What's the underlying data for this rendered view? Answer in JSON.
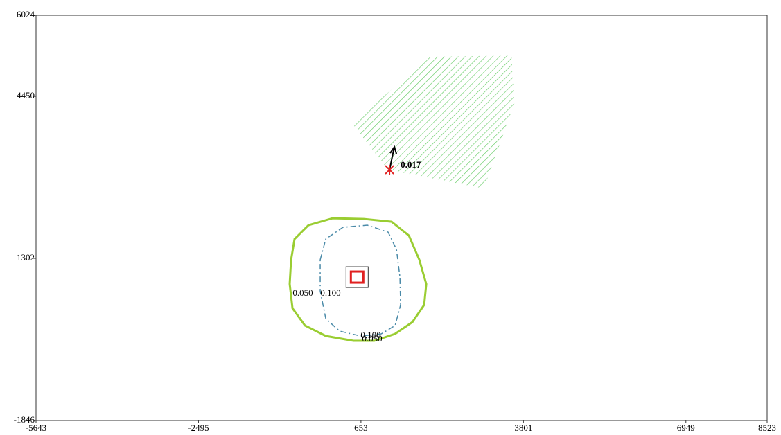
{
  "chart_data": {
    "type": "contour",
    "xlim": [
      -5643,
      8523
    ],
    "ylim": [
      -1846,
      6024
    ],
    "xticks": [
      -5643,
      -2495,
      653,
      3801,
      6949,
      8523
    ],
    "yticks": [
      -1846,
      1302,
      4450,
      6024
    ],
    "contours": [
      {
        "label": "0.050",
        "color": "#9acd32",
        "x": [
          -701,
          -634,
          -365,
          105,
          709,
          1247,
          1582,
          1784,
          1918,
          1878,
          1649,
          1314,
          911,
          508,
          -29,
          -432,
          -674,
          -728,
          -701
        ],
        "y": [
          1274,
          1678,
          1947,
          2081,
          2068,
          2014,
          1745,
          1274,
          804,
          400,
          64,
          -165,
          -299,
          -299,
          -205,
          -3,
          333,
          804,
          1274
        ]
      },
      {
        "label": "0.100",
        "color": "#4a8aa8",
        "x": [
          -137,
          -29,
          306,
          777,
          1179,
          1341,
          1408,
          1421,
          1314,
          1045,
          642,
          239,
          -29,
          -137,
          -137
        ],
        "y": [
          1274,
          1678,
          1907,
          1947,
          1812,
          1476,
          938,
          400,
          -3,
          -165,
          -205,
          -111,
          131,
          669,
          1274
        ]
      }
    ],
    "area": {
      "color": "#66cc66",
      "x": [
        481,
        1985,
        3570,
        3624,
        3033,
        1179
      ],
      "y": [
        3924,
        5215,
        5242,
        4301,
        2660,
        3023
      ]
    },
    "receptor": {
      "x": 1206,
      "y": 3023,
      "value": 0.017,
      "value_label": "0.017",
      "color": "#e02020"
    },
    "source": {
      "x": 578,
      "y": 938,
      "color": "#e02020"
    }
  }
}
